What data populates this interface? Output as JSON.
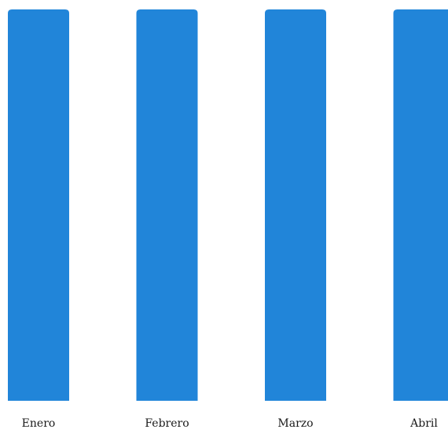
{
  "chart_data": {
    "type": "bar",
    "categories": [
      "Enero",
      "Febrero",
      "Marzo",
      "Abril"
    ],
    "values": [
      1,
      1,
      1,
      1
    ],
    "ylim": [
      0,
      1
    ],
    "title": "",
    "xlabel": "",
    "ylabel": "",
    "grid": false,
    "legend": "none",
    "bar_color": "#2185d9"
  }
}
